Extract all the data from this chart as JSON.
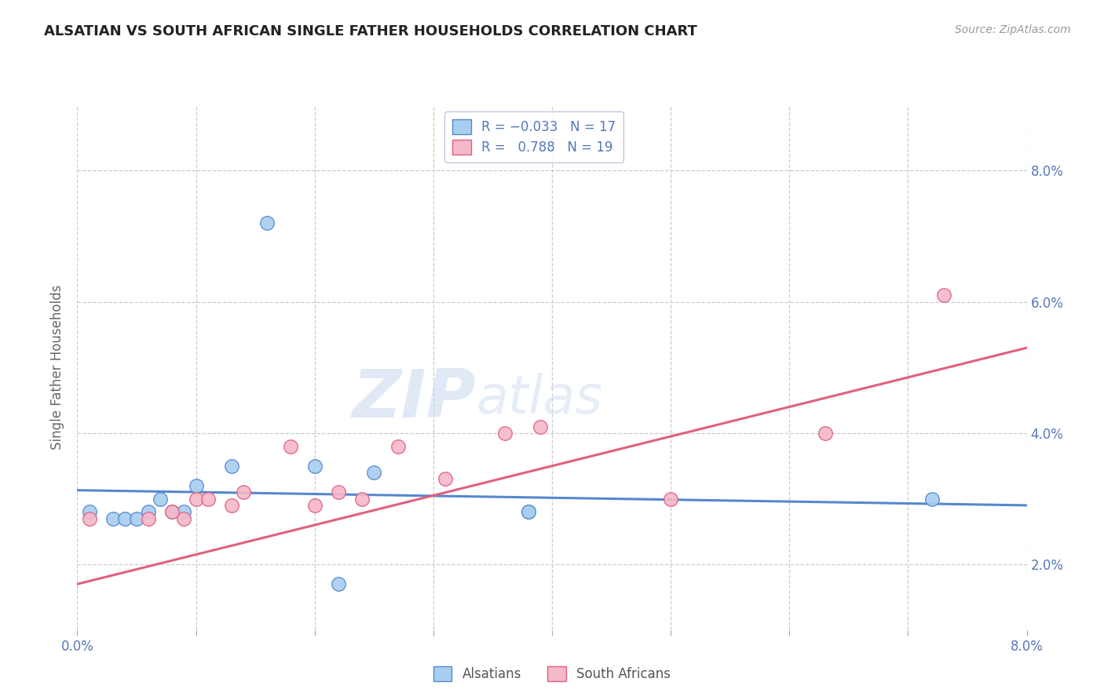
{
  "title": "ALSATIAN VS SOUTH AFRICAN SINGLE FATHER HOUSEHOLDS CORRELATION CHART",
  "source": "Source: ZipAtlas.com",
  "ylabel": "Single Father Households",
  "watermark_zip": "ZIP",
  "watermark_atlas": "atlas",
  "xlim": [
    0.0,
    0.08
  ],
  "ylim": [
    0.01,
    0.09
  ],
  "yticks": [
    0.02,
    0.04,
    0.06,
    0.08
  ],
  "ytick_labels": [
    "2.0%",
    "4.0%",
    "6.0%",
    "8.0%"
  ],
  "xtick_positions": [
    0.0,
    0.01,
    0.02,
    0.03,
    0.04,
    0.05,
    0.06,
    0.07,
    0.08
  ],
  "series": [
    {
      "label": "Alsatians",
      "R": "-0.033",
      "N": "17",
      "face_color": "#A8CEF0",
      "edge_color": "#5588CC",
      "points": [
        [
          0.001,
          0.028
        ],
        [
          0.003,
          0.027
        ],
        [
          0.004,
          0.027
        ],
        [
          0.005,
          0.027
        ],
        [
          0.006,
          0.028
        ],
        [
          0.007,
          0.03
        ],
        [
          0.008,
          0.028
        ],
        [
          0.009,
          0.028
        ],
        [
          0.01,
          0.032
        ],
        [
          0.013,
          0.035
        ],
        [
          0.016,
          0.072
        ],
        [
          0.02,
          0.035
        ],
        [
          0.022,
          0.017
        ],
        [
          0.025,
          0.034
        ],
        [
          0.038,
          0.028
        ],
        [
          0.038,
          0.028
        ],
        [
          0.072,
          0.03
        ]
      ],
      "trend": {
        "x0": 0.0,
        "y0": 0.0313,
        "x1": 0.08,
        "y1": 0.029
      }
    },
    {
      "label": "South Africans",
      "R": "0.788",
      "N": "19",
      "face_color": "#F5B8C8",
      "edge_color": "#E06080",
      "points": [
        [
          0.001,
          0.027
        ],
        [
          0.006,
          0.027
        ],
        [
          0.008,
          0.028
        ],
        [
          0.009,
          0.027
        ],
        [
          0.01,
          0.03
        ],
        [
          0.011,
          0.03
        ],
        [
          0.013,
          0.029
        ],
        [
          0.014,
          0.031
        ],
        [
          0.018,
          0.038
        ],
        [
          0.02,
          0.029
        ],
        [
          0.022,
          0.031
        ],
        [
          0.024,
          0.03
        ],
        [
          0.027,
          0.038
        ],
        [
          0.031,
          0.033
        ],
        [
          0.036,
          0.04
        ],
        [
          0.039,
          0.041
        ],
        [
          0.05,
          0.03
        ],
        [
          0.063,
          0.04
        ],
        [
          0.073,
          0.061
        ]
      ],
      "trend": {
        "x0": 0.0,
        "y0": 0.017,
        "x1": 0.08,
        "y1": 0.053
      }
    }
  ],
  "background_color": "#FFFFFF",
  "grid_color": "#CCCCCC",
  "title_color": "#222222",
  "axis_tick_color": "#5577BB",
  "legend_border_color": "#AAAACC"
}
